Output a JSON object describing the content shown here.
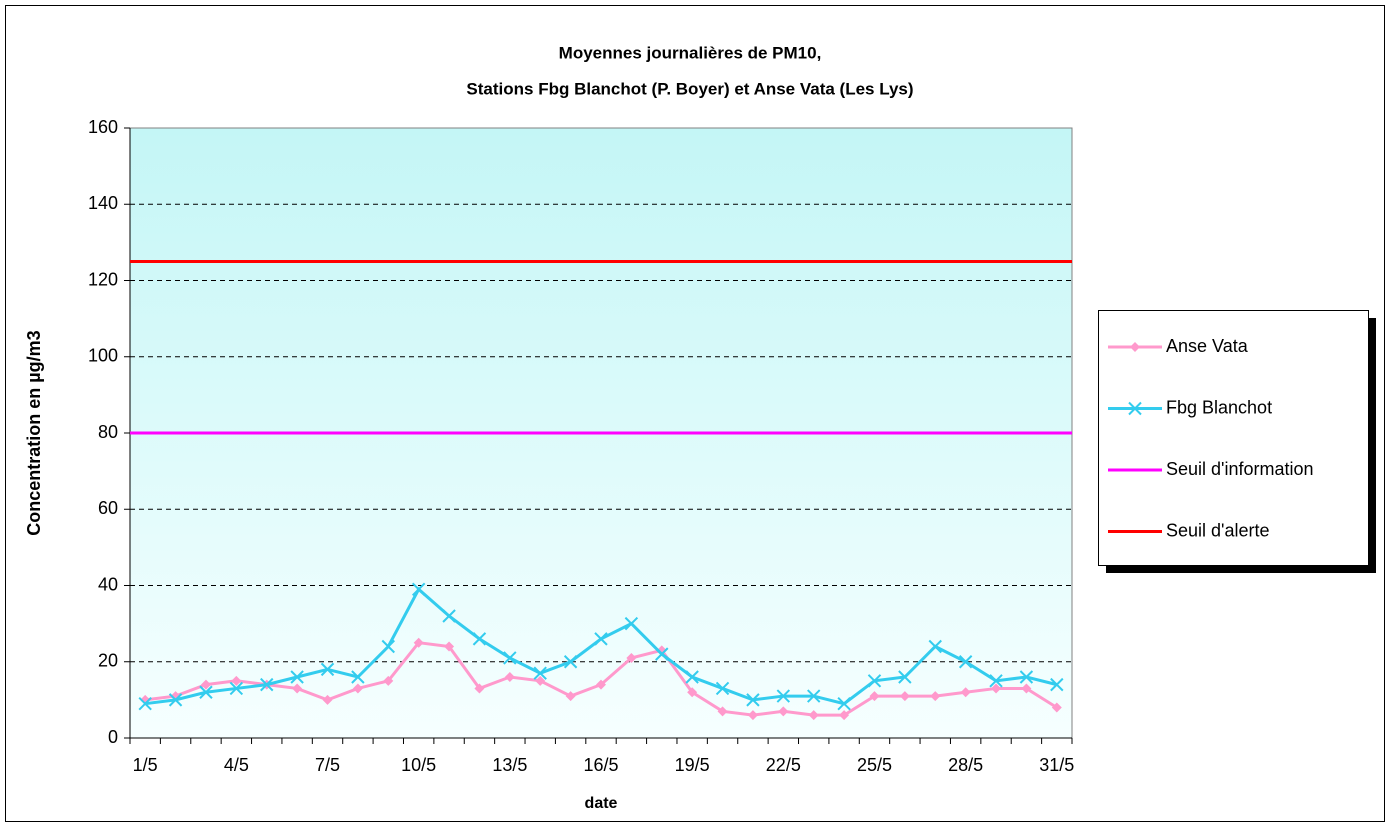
{
  "chart_data": {
    "type": "line",
    "title": "Moyennes journalières de PM10,",
    "subtitle": "Stations Fbg Blanchot (P. Boyer) et Anse Vata (Les Lys)",
    "x_label": "date",
    "y_label": "Concentration en µg/m3",
    "categories": [
      "1/5",
      null,
      null,
      "4/5",
      null,
      null,
      "7/5",
      null,
      null,
      "10/5",
      null,
      null,
      "13/5",
      null,
      null,
      "16/5",
      null,
      null,
      "19/5",
      null,
      null,
      "22/5",
      null,
      null,
      "25/5",
      null,
      null,
      "28/5",
      null,
      null,
      "31/5"
    ],
    "series": [
      {
        "name": "Anse Vata",
        "color": "#ff99cc",
        "marker": "diamond",
        "values": [
          10,
          11,
          14,
          15,
          14,
          13,
          10,
          13,
          15,
          25,
          24,
          13,
          16,
          15,
          11,
          14,
          21,
          23,
          12,
          7,
          6,
          7,
          6,
          6,
          11,
          11,
          11,
          12,
          13,
          13,
          8
        ]
      },
      {
        "name": "Fbg Blanchot",
        "color": "#33ccee",
        "marker": "x",
        "values": [
          9,
          10,
          12,
          13,
          14,
          16,
          18,
          16,
          24,
          39,
          32,
          26,
          21,
          17,
          20,
          26,
          30,
          22,
          16,
          13,
          10,
          11,
          11,
          9,
          15,
          16,
          24,
          20,
          15,
          16,
          14
        ]
      },
      {
        "name": "Seuil d'information",
        "color": "#ff00ff",
        "marker": "none",
        "values": [
          80,
          80,
          80,
          80,
          80,
          80,
          80,
          80,
          80,
          80,
          80,
          80,
          80,
          80,
          80,
          80,
          80,
          80,
          80,
          80,
          80,
          80,
          80,
          80,
          80,
          80,
          80,
          80,
          80,
          80,
          80
        ]
      },
      {
        "name": "Seuil d'alerte",
        "color": "#ff0000",
        "marker": "none",
        "values": [
          125,
          125,
          125,
          125,
          125,
          125,
          125,
          125,
          125,
          125,
          125,
          125,
          125,
          125,
          125,
          125,
          125,
          125,
          125,
          125,
          125,
          125,
          125,
          125,
          125,
          125,
          125,
          125,
          125,
          125,
          125
        ]
      }
    ],
    "ylim": [
      0,
      160
    ],
    "yticks": [
      0,
      20,
      40,
      60,
      80,
      100,
      120,
      140,
      160
    ],
    "grid": true,
    "legend": "right"
  }
}
